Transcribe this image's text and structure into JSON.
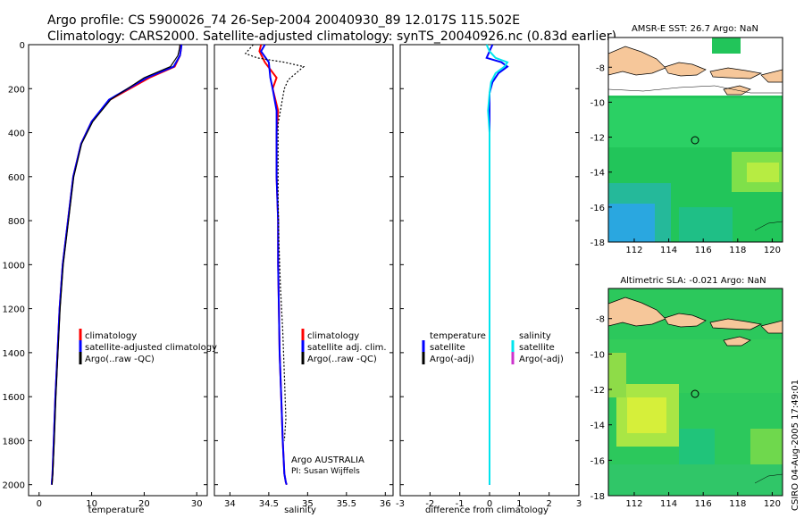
{
  "header": {
    "line1": "Argo profile: CS 5900026_74 26-Sep-2004 20040930_89 12.017S 115.502E",
    "line2": "Climatology: CARS2000. Satellite-adjusted climatology: synTS_20040926.nc (0.83d earlier)"
  },
  "side_label": "CSIRO 04-Aug-2005 17:49:01",
  "colors": {
    "climatology": "#ff0000",
    "satellite": "#0000ff",
    "argo": "#000000",
    "cyan": "#00e5ee",
    "magenta": "#cc33cc",
    "land": "#f6c79a",
    "ocean_green": "#22c55a"
  },
  "chart_data": [
    {
      "id": "temperature",
      "type": "line",
      "xlabel": "temperature",
      "xlim": [
        -2,
        32
      ],
      "ylim": [
        2050,
        0
      ],
      "xticks": [
        0,
        10,
        20,
        30
      ],
      "xtick_labels": [
        "0",
        "10",
        "20",
        "30"
      ],
      "yticks": [
        0,
        200,
        400,
        600,
        800,
        1000,
        1200,
        1400,
        1600,
        1800,
        2000
      ],
      "ytick_labels": [
        "0",
        "200",
        "400",
        "600",
        "800",
        "1000",
        "1200",
        "1400",
        "1600",
        "1800",
        "2000"
      ],
      "legend": {
        "position": "lower-right",
        "entries": [
          "climatology",
          "satellite-adjusted climatology",
          "Argo(..raw -QC)"
        ]
      },
      "series": [
        {
          "name": "climatology",
          "color": "red",
          "x": [
            27.0,
            27.0,
            26.8,
            25.8,
            21.0,
            13.5,
            10.0,
            8.0,
            6.5,
            5.5,
            4.5,
            3.9,
            3.5,
            3.1,
            2.8,
            2.55,
            2.4
          ],
          "y": [
            0,
            20,
            50,
            100,
            150,
            250,
            350,
            450,
            600,
            800,
            1000,
            1200,
            1400,
            1600,
            1800,
            1950,
            2000
          ]
        },
        {
          "name": "satellite-adjusted climatology",
          "color": "blue",
          "x": [
            27.1,
            27.0,
            26.8,
            25.6,
            20.5,
            13.3,
            10.0,
            8.0,
            6.5,
            5.5,
            4.5,
            3.9,
            3.5,
            3.1,
            2.8,
            2.55,
            2.4
          ],
          "y": [
            0,
            20,
            50,
            100,
            150,
            250,
            350,
            450,
            600,
            800,
            1000,
            1200,
            1400,
            1600,
            1800,
            1950,
            2000
          ]
        },
        {
          "name": "Argo(..raw -QC)",
          "color": "black",
          "x": [
            26.8,
            26.7,
            26.4,
            25.0,
            20.0,
            13.6,
            10.2,
            8.1,
            6.6,
            5.6,
            4.6,
            4.0,
            3.6,
            3.2,
            2.9,
            2.6,
            2.45
          ],
          "y": [
            0,
            20,
            50,
            100,
            150,
            250,
            350,
            450,
            600,
            800,
            1000,
            1200,
            1400,
            1600,
            1800,
            1950,
            2000
          ]
        }
      ]
    },
    {
      "id": "salinity",
      "type": "line",
      "xlabel": "salinity",
      "xlim": [
        33.8,
        36.1
      ],
      "ylim": [
        2050,
        0
      ],
      "xticks": [
        34,
        34.5,
        35,
        35.5,
        36
      ],
      "xtick_labels": [
        "34",
        "34.5",
        "35",
        "35.5",
        "36"
      ],
      "yticks": [
        0,
        200,
        400,
        600,
        800,
        1000,
        1200,
        1400,
        1600,
        1800,
        2000
      ],
      "legend": {
        "position": "lower-right",
        "entries": [
          "climatology",
          "satellite adj. clim.",
          "Argo(..raw -QC)"
        ]
      },
      "annotations": [
        "Argo AUSTRALIA",
        "PI: Susan Wijffels"
      ],
      "series": [
        {
          "name": "climatology",
          "color": "red",
          "x": [
            34.4,
            34.38,
            34.45,
            34.6,
            34.55,
            34.62,
            34.6,
            34.6,
            34.62,
            34.62,
            34.63,
            34.64,
            34.66,
            34.68,
            34.7,
            34.72,
            34.73
          ],
          "y": [
            0,
            30,
            80,
            150,
            200,
            300,
            400,
            600,
            800,
            1000,
            1200,
            1400,
            1600,
            1800,
            1950,
            1990,
            2000
          ]
        },
        {
          "name": "satellite adj. clim.",
          "color": "blue",
          "x": [
            34.45,
            34.4,
            34.5,
            34.52,
            34.55,
            34.6,
            34.6,
            34.6,
            34.62,
            34.62,
            34.63,
            34.64,
            34.66,
            34.68,
            34.7,
            34.72,
            34.73
          ],
          "y": [
            0,
            30,
            80,
            150,
            200,
            300,
            400,
            600,
            800,
            1000,
            1200,
            1400,
            1600,
            1800,
            1950,
            1990,
            2000
          ]
        },
        {
          "name": "Argo(..raw -QC)",
          "color": "black",
          "x": [
            34.3,
            34.25,
            34.2,
            34.35,
            34.7,
            34.95,
            34.85,
            34.75,
            34.7,
            34.68,
            34.65,
            34.62,
            34.62,
            34.62,
            34.62,
            34.63,
            34.65,
            34.68,
            34.7,
            34.72,
            34.7
          ],
          "y": [
            0,
            20,
            40,
            60,
            80,
            100,
            130,
            160,
            200,
            240,
            300,
            360,
            400,
            500,
            700,
            900,
            1100,
            1300,
            1500,
            1700,
            1800
          ]
        }
      ]
    },
    {
      "id": "difference",
      "type": "line",
      "xlabel": "difference from climatology",
      "xlim": [
        -3,
        3
      ],
      "ylim": [
        2050,
        0
      ],
      "xticks": [
        -3,
        -2,
        -1,
        0,
        1,
        2,
        3
      ],
      "xtick_labels": [
        "-3",
        "-2",
        "-1",
        "0",
        "1",
        "2",
        "3"
      ],
      "yticks": [
        0,
        200,
        400,
        600,
        800,
        1000,
        1200,
        1400,
        1600,
        1800,
        2000
      ],
      "legend": {
        "position": "lower",
        "left_entries": [
          "temperature",
          "satellite",
          "Argo(-adj)"
        ],
        "right_entries": [
          "salinity",
          "satellite",
          "Argo(-adj)"
        ]
      },
      "series": [
        {
          "name": "temperature satellite",
          "color": "blue",
          "x": [
            0.1,
            0.0,
            -0.1,
            0.4,
            0.6,
            0.3,
            0.1,
            0.0,
            0.0,
            0.0,
            0.0,
            0.0,
            0.0,
            0.0,
            0.0,
            0.0
          ],
          "y": [
            0,
            30,
            60,
            80,
            100,
            130,
            170,
            220,
            300,
            400,
            600,
            800,
            1000,
            1400,
            1800,
            2000
          ]
        },
        {
          "name": "salinity satellite",
          "color": "cyan",
          "x": [
            -0.1,
            0.0,
            0.2,
            0.6,
            0.5,
            0.2,
            0.05,
            0.0,
            -0.05,
            0.0,
            0.0,
            0.0,
            0.0,
            0.0,
            0.0,
            0.0
          ],
          "y": [
            0,
            30,
            60,
            80,
            100,
            130,
            170,
            220,
            300,
            400,
            600,
            800,
            1000,
            1400,
            1800,
            2000
          ]
        }
      ]
    }
  ],
  "maps": [
    {
      "id": "sst",
      "title": "AMSR-E SST: 26.7  Argo: NaN",
      "xticks": [
        "112",
        "114",
        "116",
        "118",
        "120"
      ],
      "yticks": [
        "-8",
        "-10",
        "-12",
        "-14",
        "-16",
        "-18"
      ],
      "marker_lon": 115.5,
      "marker_lat": -12.0,
      "lon_range": [
        110.5,
        120.6
      ],
      "lat_range": [
        -18,
        -6.3
      ]
    },
    {
      "id": "sla",
      "title": "Altimetric SLA: -0.021  Argo: NaN",
      "xticks": [
        "112",
        "114",
        "116",
        "118",
        "120"
      ],
      "yticks": [
        "-8",
        "-10",
        "-12",
        "-14",
        "-16",
        "-18"
      ],
      "marker_lon": 115.5,
      "marker_lat": -12.0,
      "lon_range": [
        110.5,
        120.6
      ],
      "lat_range": [
        -18,
        -6.3
      ]
    }
  ]
}
